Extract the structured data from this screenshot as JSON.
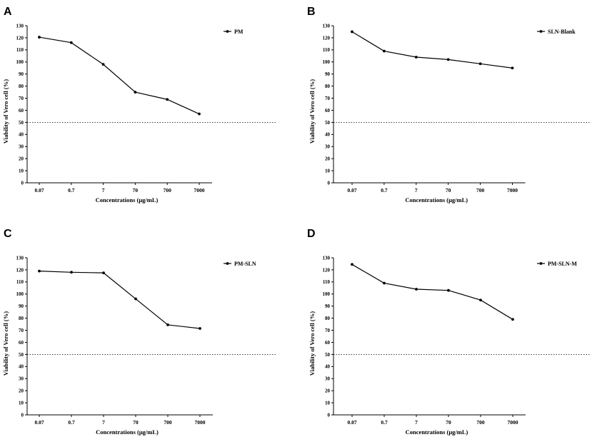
{
  "chart_data": [
    {
      "panel": "A",
      "type": "line",
      "categories": [
        "0.07",
        "0.7",
        "7",
        "70",
        "700",
        "7000"
      ],
      "series": [
        {
          "name": "PM",
          "values": [
            120.5,
            116,
            98,
            75,
            69,
            57
          ]
        }
      ],
      "reference_line": 50,
      "xlabel": "Concentrations (μg/mL)",
      "ylabel": "Viability of Vero cell (%)",
      "ylim": [
        0,
        130
      ],
      "yticks": [
        "0",
        "10",
        "20",
        "30",
        "40",
        "50",
        "60",
        "70",
        "80",
        "90",
        "100",
        "110",
        "120",
        "130"
      ],
      "legend_position": "top-right"
    },
    {
      "panel": "B",
      "type": "line",
      "categories": [
        "0.07",
        "0.7",
        "7",
        "70",
        "700",
        "7000"
      ],
      "series": [
        {
          "name": "SLN-Blank",
          "values": [
            125,
            109,
            104,
            102,
            98.5,
            95
          ]
        }
      ],
      "reference_line": 50,
      "xlabel": "Concentrations (μg/mL)",
      "ylabel": "Viability of Vero cell (%)",
      "ylim": [
        0,
        130
      ],
      "yticks": [
        "0",
        "10",
        "20",
        "30",
        "40",
        "50",
        "60",
        "70",
        "80",
        "90",
        "100",
        "110",
        "120",
        "130"
      ],
      "legend_position": "top-right"
    },
    {
      "panel": "C",
      "type": "line",
      "categories": [
        "0.07",
        "0.7",
        "7",
        "70",
        "700",
        "7000"
      ],
      "series": [
        {
          "name": "PM-SLN",
          "values": [
            119,
            118,
            117.5,
            96,
            74.5,
            71.5
          ]
        }
      ],
      "reference_line": 50,
      "xlabel": "Concentrations (μg/mL)",
      "ylabel": "Viability of Vero cell (%)",
      "ylim": [
        0,
        130
      ],
      "yticks": [
        "0",
        "10",
        "20",
        "30",
        "40",
        "50",
        "60",
        "70",
        "80",
        "90",
        "100",
        "110",
        "120",
        "130"
      ],
      "legend_position": "top-right"
    },
    {
      "panel": "D",
      "type": "line",
      "categories": [
        "0.07",
        "0.7",
        "7",
        "70",
        "700",
        "7000"
      ],
      "series": [
        {
          "name": "PM-SLN-M",
          "values": [
            124.5,
            109,
            104,
            103,
            95,
            79
          ]
        }
      ],
      "reference_line": 50,
      "xlabel": "Concentrations (μg/mL)",
      "ylabel": "Viability of Vero cell (%)",
      "ylim": [
        0,
        130
      ],
      "yticks": [
        "0",
        "10",
        "20",
        "30",
        "40",
        "50",
        "60",
        "70",
        "80",
        "90",
        "100",
        "110",
        "120",
        "130"
      ],
      "legend_position": "top-right"
    }
  ]
}
